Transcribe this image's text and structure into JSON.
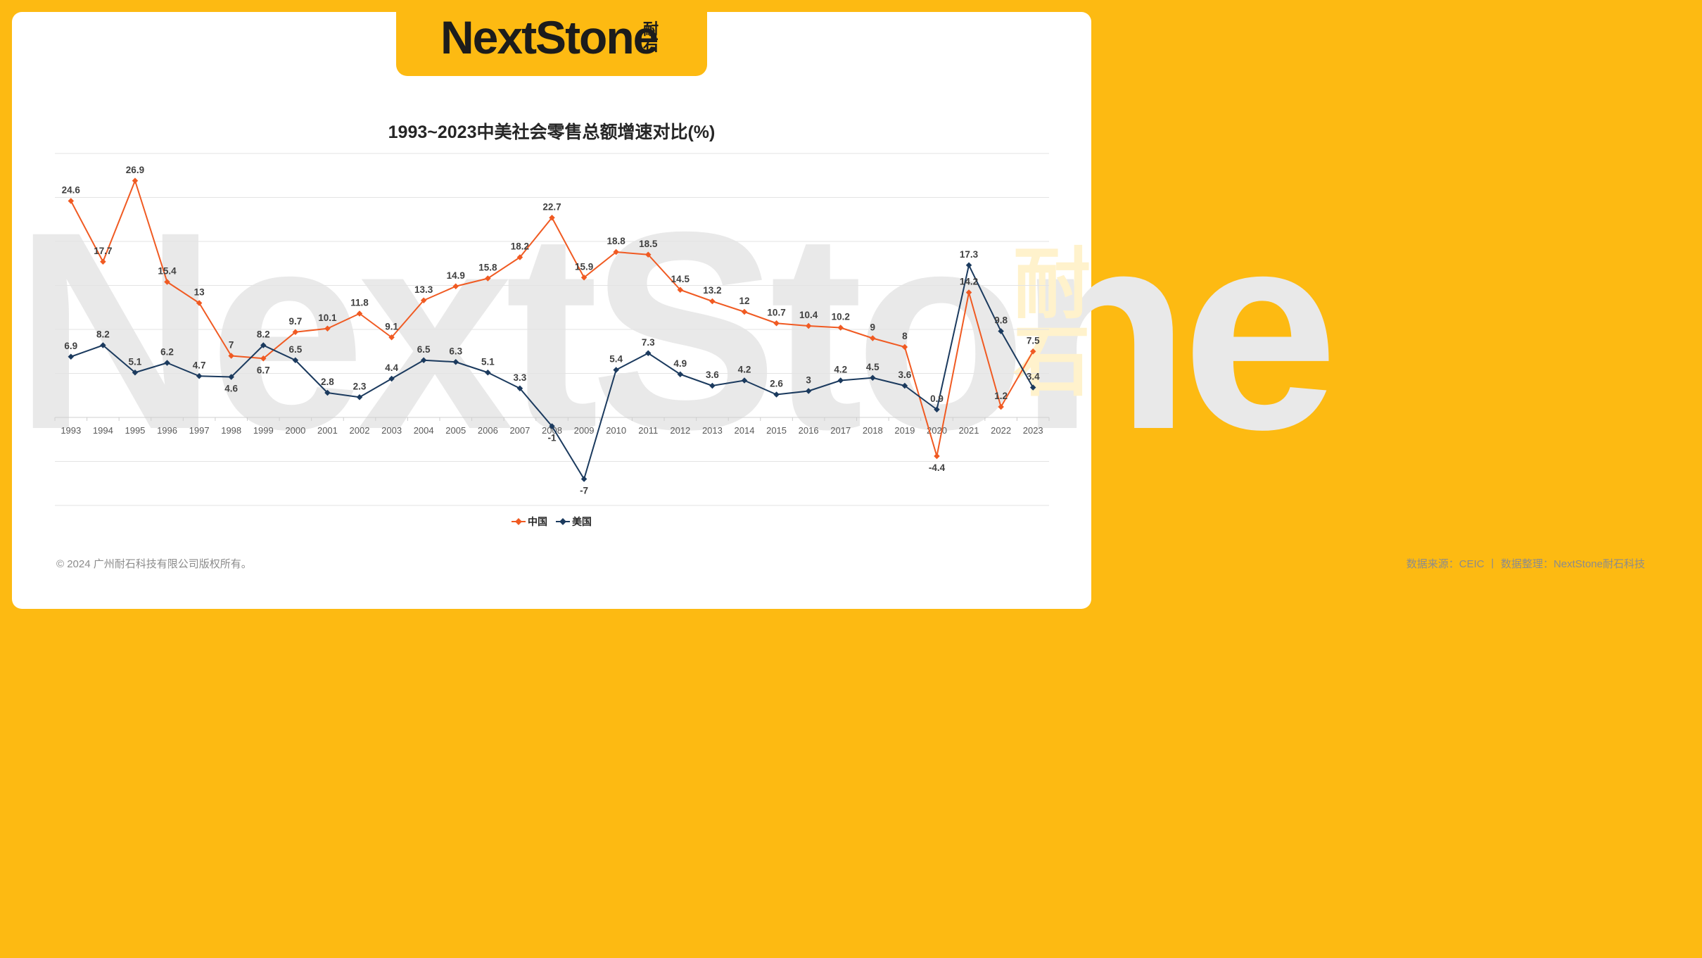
{
  "brand": {
    "logo_text": "NextStone",
    "logo_cn": "耐石",
    "watermark_text": "NextStone",
    "watermark_cn": "耐石"
  },
  "chart_data": {
    "type": "line",
    "title": "1993~2023中美社会零售总额增速对比(%)",
    "xlabel": "",
    "ylabel": "",
    "ylim": [
      -10,
      30
    ],
    "grid": true,
    "legend_position": "bottom",
    "categories": [
      "1993",
      "1994",
      "1995",
      "1996",
      "1997",
      "1998",
      "1999",
      "2000",
      "2001",
      "2002",
      "2003",
      "2004",
      "2005",
      "2006",
      "2007",
      "2008",
      "2009",
      "2010",
      "2011",
      "2012",
      "2013",
      "2014",
      "2015",
      "2016",
      "2017",
      "2018",
      "2019",
      "2020",
      "2021",
      "2022",
      "2023"
    ],
    "series": [
      {
        "name": "中国",
        "color": "#F05A22",
        "values": [
          24.6,
          17.7,
          26.9,
          15.4,
          13,
          7,
          6.7,
          9.7,
          10.1,
          11.8,
          9.1,
          13.3,
          14.9,
          15.8,
          18.2,
          22.7,
          15.9,
          18.8,
          18.5,
          14.5,
          13.2,
          12,
          10.7,
          10.4,
          10.2,
          9,
          8,
          -4.4,
          14.2,
          1.2,
          7.5
        ]
      },
      {
        "name": "美国",
        "color": "#1B3A5E",
        "values": [
          6.9,
          8.2,
          5.1,
          6.2,
          4.7,
          4.6,
          8.2,
          6.5,
          2.8,
          2.3,
          4.4,
          6.5,
          6.3,
          5.1,
          3.3,
          -1,
          -7,
          5.4,
          7.3,
          4.9,
          3.6,
          4.2,
          2.6,
          3,
          4.2,
          4.5,
          3.6,
          0.9,
          17.3,
          9.8,
          3.4
        ]
      }
    ]
  },
  "footer": {
    "copyright": "© 2024 广州耐石科技有限公司版权所有。",
    "source": "数据来源：CEIC 丨 数据整理：NextStone耐石科技"
  }
}
